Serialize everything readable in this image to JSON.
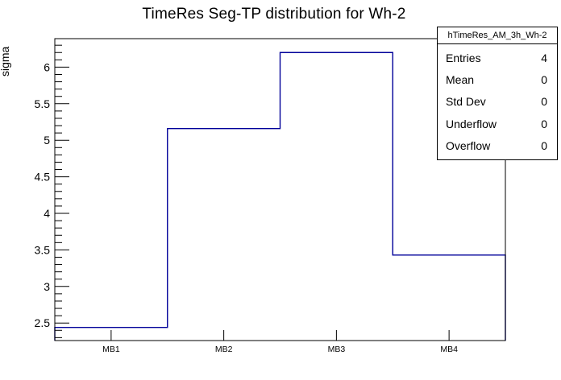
{
  "chart_data": {
    "type": "bar",
    "style": "root-step-histogram-outline",
    "title": "TimeRes Seg-TP distribution for Wh-2",
    "categories": [
      "MB1",
      "MB2",
      "MB3",
      "MB4"
    ],
    "values": [
      2.44,
      5.16,
      6.2,
      3.43
    ],
    "xlabel": "",
    "ylabel": "sigma",
    "ylim": [
      2.26,
      6.39
    ],
    "yticks": [
      2.5,
      3,
      3.5,
      4,
      4.5,
      5,
      5.5,
      6
    ],
    "minor_tick_step": 0.1,
    "grid": false,
    "legend_position": "none",
    "line_color": "#000099",
    "axis_color": "#000000",
    "background_color": "#ffffff"
  },
  "stats_box": {
    "title": "hTimeRes_AM_3h_Wh-2",
    "rows": [
      {
        "label": "Entries",
        "value": "4"
      },
      {
        "label": "Mean",
        "value": "0"
      },
      {
        "label": "Std Dev",
        "value": "0"
      },
      {
        "label": "Underflow",
        "value": "0"
      },
      {
        "label": "Overflow",
        "value": "0"
      }
    ]
  }
}
